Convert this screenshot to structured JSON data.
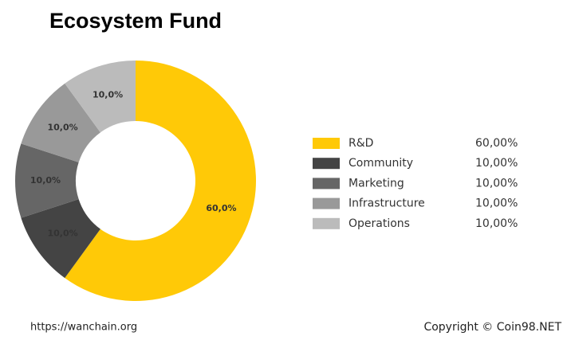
{
  "chart_data": {
    "type": "pie",
    "donut": true,
    "title": "Ecosystem Fund",
    "categories": [
      "R&D",
      "Community",
      "Marketing",
      "Infrastructure",
      "Operations"
    ],
    "values": [
      60,
      10,
      10,
      10,
      10
    ],
    "value_labels": [
      "60,0%",
      "10,0%",
      "10,0%",
      "10,0%",
      "10,0%"
    ],
    "legend_value_labels": [
      "60,00%",
      "10,00%",
      "10,00%",
      "10,00%",
      "10,00%"
    ],
    "colors": [
      "#ffc907",
      "#444444",
      "#666666",
      "#999999",
      "#bbbbbb"
    ],
    "source": "https://wanchain.org",
    "credit": "Copyright © Coin98.NET"
  }
}
